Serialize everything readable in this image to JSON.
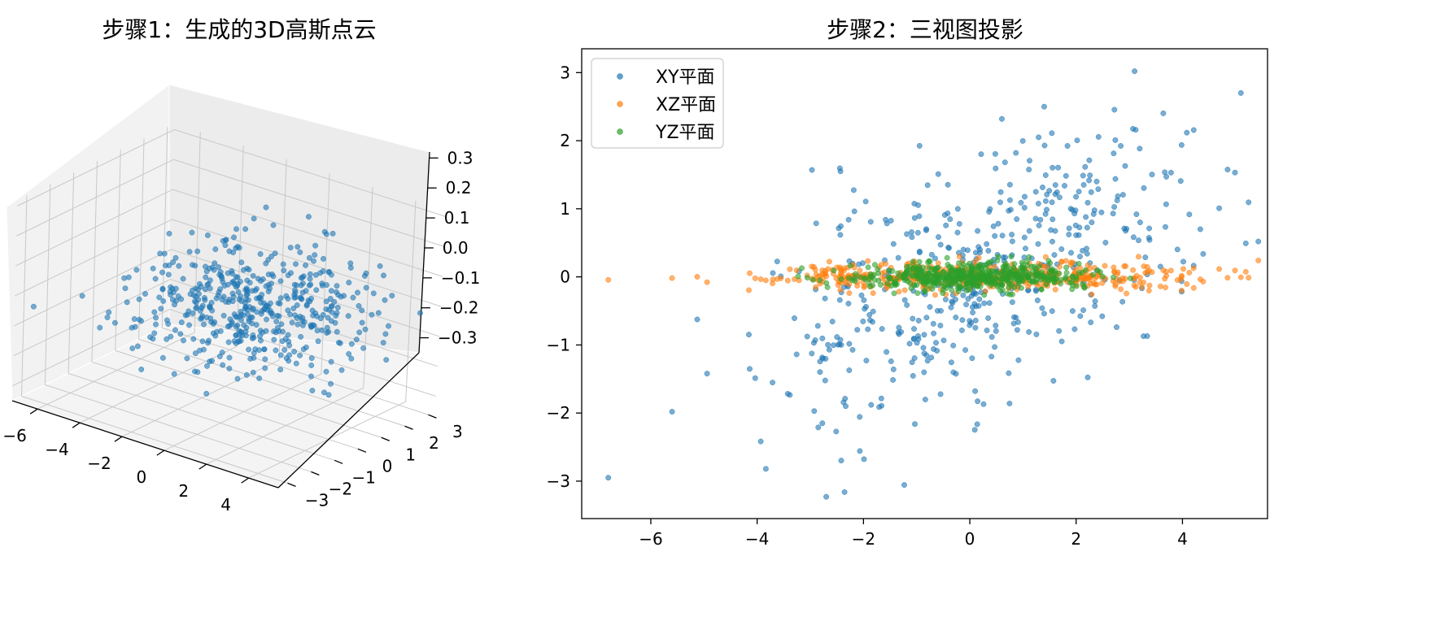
{
  "chart_data": [
    {
      "type": "scatter3d",
      "title": "步骤1：生成的3D高斯点云",
      "x_ticks": [
        "−6",
        "−4",
        "−2",
        "0",
        "2",
        "4"
      ],
      "y_ticks": [
        "−3",
        "−2",
        "−1",
        "0",
        "1",
        "2",
        "3"
      ],
      "z_ticks": [
        "−0.3",
        "−0.2",
        "−0.1",
        "0.0",
        "0.1",
        "0.2",
        "0.3"
      ],
      "x_range": [
        -7.2,
        5.4
      ],
      "y_range": [
        -3.4,
        3.3
      ],
      "z_range": [
        -0.35,
        0.32
      ],
      "color": "#1f77b4",
      "point_count": 500,
      "distribution": {
        "x_std": 2.0,
        "y_std": 1.0,
        "z_std": 0.1,
        "xy_corr": 0.55
      }
    },
    {
      "type": "scatter",
      "title": "步骤2：三视图投影",
      "x_ticks": [
        "−6",
        "−4",
        "−2",
        "0",
        "2",
        "4"
      ],
      "y_ticks": [
        "−3",
        "−2",
        "−1",
        "0",
        "1",
        "2",
        "3"
      ],
      "x_range": [
        -7.3,
        5.6
      ],
      "y_range": [
        -3.55,
        3.35
      ],
      "grid": false,
      "legend_position": "top-left",
      "series": [
        {
          "name": "XY平面",
          "color": "#1f77b4"
        },
        {
          "name": "XZ平面",
          "color": "#ff7f0e"
        },
        {
          "name": "YZ平面",
          "color": "#2ca02c"
        }
      ],
      "highlight_points": [
        {
          "x": -6.8,
          "y": -2.95
        },
        {
          "x": -2.7,
          "y": -3.23
        },
        {
          "x": 3.1,
          "y": 3.02
        },
        {
          "x": 5.1,
          "y": 2.7
        },
        {
          "x": -5.6,
          "y": -1.98
        },
        {
          "x": 1.4,
          "y": 2.5
        }
      ]
    }
  ]
}
